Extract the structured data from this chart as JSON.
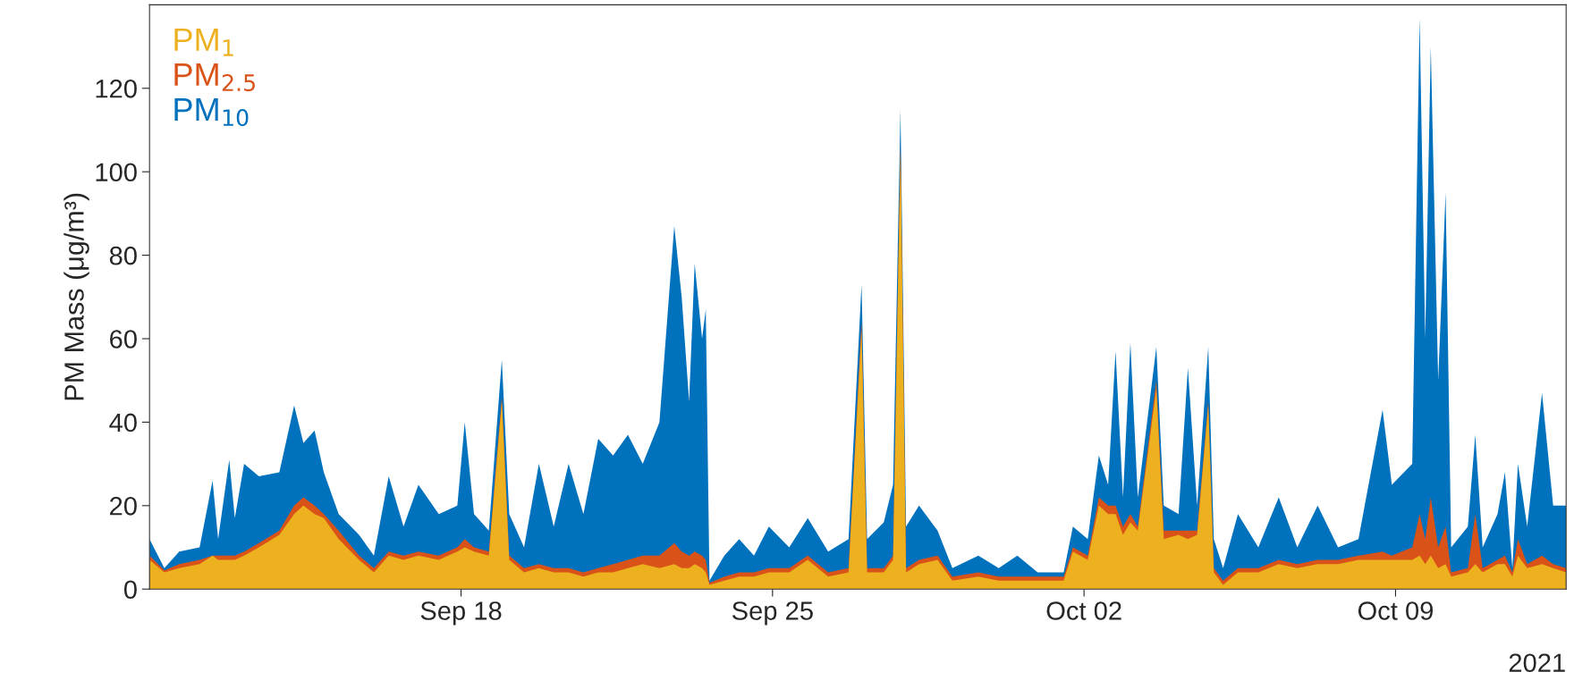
{
  "chart_data": {
    "type": "area",
    "ylabel": "PM Mass (μg/m³)",
    "x": [
      "2021-09-11T00:00",
      "2021-09-11T08:00",
      "2021-09-11T16:00",
      "2021-09-12T03:00",
      "2021-09-12T10:00",
      "2021-09-12T13:00",
      "2021-09-12T19:00",
      "2021-09-12T22:00",
      "2021-09-13T03:00",
      "2021-09-13T11:00",
      "2021-09-13T22:00",
      "2021-09-14T06:00",
      "2021-09-14T11:00",
      "2021-09-14T17:00",
      "2021-09-14T22:00",
      "2021-09-15T06:00",
      "2021-09-15T17:00",
      "2021-09-16T01:00",
      "2021-09-16T09:00",
      "2021-09-16T17:00",
      "2021-09-17T01:00",
      "2021-09-17T12:00",
      "2021-09-17T22:00",
      "2021-09-18T02:00",
      "2021-09-18T07:00",
      "2021-09-18T15:00",
      "2021-09-18T22:00",
      "2021-09-19T02:00",
      "2021-09-19T10:00",
      "2021-09-19T18:00",
      "2021-09-20T02:00",
      "2021-09-20T10:00",
      "2021-09-20T18:00",
      "2021-09-21T02:00",
      "2021-09-21T10:00",
      "2021-09-21T18:00",
      "2021-09-22T02:00",
      "2021-09-22T11:00",
      "2021-09-22T19:00",
      "2021-09-22T23:00",
      "2021-09-23T03:00",
      "2021-09-23T06:00",
      "2021-09-23T10:00",
      "2021-09-23T12:00",
      "2021-09-23T14:00",
      "2021-09-23T22:00",
      "2021-09-24T06:00",
      "2021-09-24T14:00",
      "2021-09-24T22:00",
      "2021-09-25T09:00",
      "2021-09-25T19:00",
      "2021-09-26T06:00",
      "2021-09-26T17:00",
      "2021-09-27T00:00",
      "2021-09-27T03:00",
      "2021-09-27T12:00",
      "2021-09-27T17:00",
      "2021-09-27T21:00",
      "2021-09-28T00:00",
      "2021-09-28T07:00",
      "2021-09-28T17:00",
      "2021-09-29T01:00",
      "2021-09-29T15:00",
      "2021-09-30T02:00",
      "2021-09-30T12:00",
      "2021-09-30T23:00",
      "2021-10-01T13:00",
      "2021-10-01T18:00",
      "2021-10-02T02:00",
      "2021-10-02T08:00",
      "2021-10-02T13:00",
      "2021-10-02T17:00",
      "2021-10-02T21:00",
      "2021-10-03T01:00",
      "2021-10-03T05:00",
      "2021-10-03T15:00",
      "2021-10-03T19:00",
      "2021-10-04T03:00",
      "2021-10-04T08:00",
      "2021-10-04T13:00",
      "2021-10-04T19:00",
      "2021-10-04T22:00",
      "2021-10-05T03:00",
      "2021-10-05T11:00",
      "2021-10-05T22:00",
      "2021-10-06T09:00",
      "2021-10-06T19:00",
      "2021-10-07T06:00",
      "2021-10-07T17:00",
      "2021-10-08T04:00",
      "2021-10-08T17:00",
      "2021-10-08T22:00",
      "2021-10-09T09:00",
      "2021-10-09T13:00",
      "2021-10-09T16:00",
      "2021-10-09T19:00",
      "2021-10-09T23:00",
      "2021-10-10T03:00",
      "2021-10-10T06:00",
      "2021-10-10T15:00",
      "2021-10-10T19:00",
      "2021-10-10T23:00",
      "2021-10-11T07:00",
      "2021-10-11T11:00",
      "2021-10-11T15:00",
      "2021-10-11T18:00",
      "2021-10-11T23:00",
      "2021-10-12T07:00",
      "2021-10-12T13:00",
      "2021-10-12T20:00"
    ],
    "series": [
      {
        "name": "PM$_{1}$",
        "color": "#edb120",
        "values": [
          7,
          4,
          5,
          6,
          8,
          7,
          7,
          7,
          8,
          10,
          13,
          18,
          20,
          18,
          17,
          12,
          7,
          4,
          8,
          7,
          8,
          7,
          9,
          10,
          9,
          8,
          45,
          7,
          4,
          5,
          4,
          4,
          3,
          4,
          4,
          5,
          6,
          5,
          6,
          5,
          5,
          6,
          5,
          4,
          1,
          2,
          3,
          3,
          4,
          4,
          7,
          3,
          4,
          62,
          4,
          4,
          7,
          105,
          4,
          6,
          7,
          2,
          3,
          2,
          2,
          2,
          2,
          9,
          7,
          20,
          18,
          18,
          13,
          16,
          14,
          48,
          12,
          13,
          12,
          13,
          44,
          4,
          1,
          4,
          4,
          6,
          5,
          6,
          6,
          7,
          7,
          7,
          7,
          8,
          6,
          8,
          5,
          6,
          3,
          4,
          6,
          4,
          6,
          6,
          3,
          8,
          5,
          6,
          5,
          4
        ]
      },
      {
        "name": "PM$_{2.5}$",
        "color": "#d95319",
        "values": [
          8,
          4.5,
          6,
          7,
          8,
          8,
          8,
          8,
          9,
          11,
          14,
          20,
          22,
          20,
          18,
          14,
          8,
          5,
          9,
          8,
          9,
          8,
          10,
          12,
          10,
          9,
          46,
          8,
          5,
          6,
          5,
          5,
          4,
          5,
          6,
          7,
          8,
          8,
          11,
          9,
          8,
          9,
          8,
          7,
          1.5,
          3,
          4,
          4,
          5,
          5,
          8,
          4,
          5,
          64,
          5,
          5,
          8,
          107,
          5,
          7,
          8,
          3,
          4,
          3,
          3,
          3,
          3,
          10,
          8,
          22,
          20,
          20,
          15,
          18,
          15,
          50,
          14,
          14,
          14,
          14,
          45,
          5,
          2,
          5,
          5,
          7,
          6,
          7,
          7,
          8,
          9,
          8,
          10,
          18,
          12,
          22,
          10,
          15,
          4,
          5,
          18,
          5,
          7,
          8,
          4,
          12,
          6,
          8,
          6,
          5
        ]
      },
      {
        "name": "PM$_{10}$",
        "color": "#0072bd",
        "values": [
          12,
          5,
          9,
          10,
          26,
          12,
          31,
          17,
          30,
          27,
          28,
          44,
          35,
          38,
          28,
          18,
          13,
          8,
          27,
          15,
          25,
          18,
          20,
          40,
          18,
          14,
          55,
          18,
          10,
          30,
          15,
          30,
          18,
          36,
          32,
          37,
          30,
          40,
          87,
          70,
          45,
          78,
          60,
          67,
          2,
          8,
          12,
          8,
          15,
          10,
          17,
          9,
          12,
          73,
          12,
          16,
          25,
          115,
          15,
          20,
          14,
          5,
          8,
          5,
          8,
          4,
          4,
          15,
          12,
          32,
          25,
          57,
          22,
          59,
          22,
          58,
          20,
          18,
          53,
          20,
          58,
          12,
          5,
          18,
          10,
          22,
          10,
          20,
          10,
          12,
          43,
          25,
          30,
          137,
          60,
          130,
          50,
          95,
          10,
          15,
          37,
          10,
          18,
          28,
          5,
          30,
          15,
          47,
          20,
          20
        ]
      }
    ],
    "xlim": [
      "2021-09-11T00:00",
      "2021-10-12T20:00"
    ],
    "xticks": [
      {
        "value": "2021-09-18",
        "label": "Sep 18"
      },
      {
        "value": "2021-09-25",
        "label": "Sep 25"
      },
      {
        "value": "2021-10-02",
        "label": "Oct 02"
      },
      {
        "value": "2021-10-09",
        "label": "Oct 09"
      }
    ],
    "ylim": [
      0,
      140
    ],
    "yticks": [
      0,
      20,
      40,
      60,
      80,
      100,
      120
    ],
    "legend": "top left",
    "annotations": [
      "2021"
    ]
  }
}
